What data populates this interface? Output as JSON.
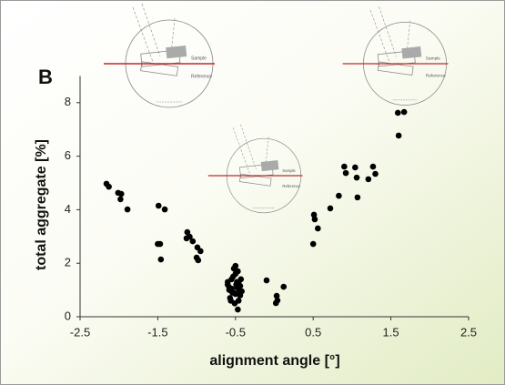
{
  "chart_data": {
    "type": "scatter",
    "panel_label": "B",
    "x_label": "alignment angle [°]",
    "y_label": "total aggregate [%]",
    "xlim": [
      -2.5,
      2.5
    ],
    "ylim": [
      0,
      9
    ],
    "xticks": [
      -2.5,
      -1.5,
      -0.5,
      0.5,
      1.5,
      2.5
    ],
    "yticks": [
      0,
      2,
      4,
      6,
      8
    ],
    "color": "#000000",
    "x": [
      -2.16,
      -2.13,
      -2.01,
      -1.97,
      -1.98,
      -1.89,
      -1.49,
      -1.41,
      -1.5,
      -1.47,
      -1.46,
      -1.12,
      -1.09,
      -1.13,
      -1.05,
      -0.99,
      -0.95,
      -1.0,
      -0.98,
      -0.6,
      -0.58,
      -0.55,
      -0.52,
      -0.5,
      -0.48,
      -0.46,
      -0.44,
      -0.57,
      -0.53,
      -0.49,
      -0.45,
      -0.6,
      -0.56,
      -0.51,
      -0.47,
      -0.43,
      -0.58,
      -0.54,
      -0.5,
      -0.46,
      -0.52,
      -0.48,
      -0.55,
      -0.44,
      -0.5,
      -0.42,
      -0.47,
      -0.1,
      0.03,
      0.04,
      0.12,
      0.02,
      0.51,
      0.52,
      0.56,
      0.5,
      0.72,
      0.83,
      0.9,
      0.92,
      1.04,
      1.06,
      1.07,
      1.21,
      1.27,
      1.3,
      1.59,
      1.67,
      1.6
    ],
    "values": [
      4.97,
      4.86,
      4.63,
      4.59,
      4.39,
      4.01,
      4.15,
      4.01,
      2.72,
      2.72,
      2.14,
      3.16,
      2.99,
      2.93,
      2.82,
      2.59,
      2.45,
      2.21,
      2.11,
      1.2,
      1.0,
      1.4,
      0.9,
      1.6,
      1.1,
      1.3,
      0.8,
      0.7,
      1.5,
      1.2,
      1.0,
      1.3,
      0.6,
      0.5,
      1.7,
      1.4,
      1.1,
      0.9,
      1.9,
      0.6,
      1.8,
      1.3,
      1.05,
      1.15,
      0.85,
      0.95,
      0.27,
      1.36,
      0.78,
      0.61,
      1.12,
      0.51,
      3.81,
      3.64,
      3.3,
      2.72,
      4.05,
      4.52,
      5.61,
      5.37,
      5.58,
      5.2,
      4.46,
      5.14,
      5.61,
      5.34,
      7.62,
      7.65,
      6.77
    ]
  },
  "insets": [
    {
      "labels": [
        "Sample",
        "Reference"
      ]
    },
    {
      "labels": [
        "Sample",
        "Reference"
      ]
    },
    {
      "labels": [
        "Sample",
        "Reference"
      ]
    }
  ]
}
